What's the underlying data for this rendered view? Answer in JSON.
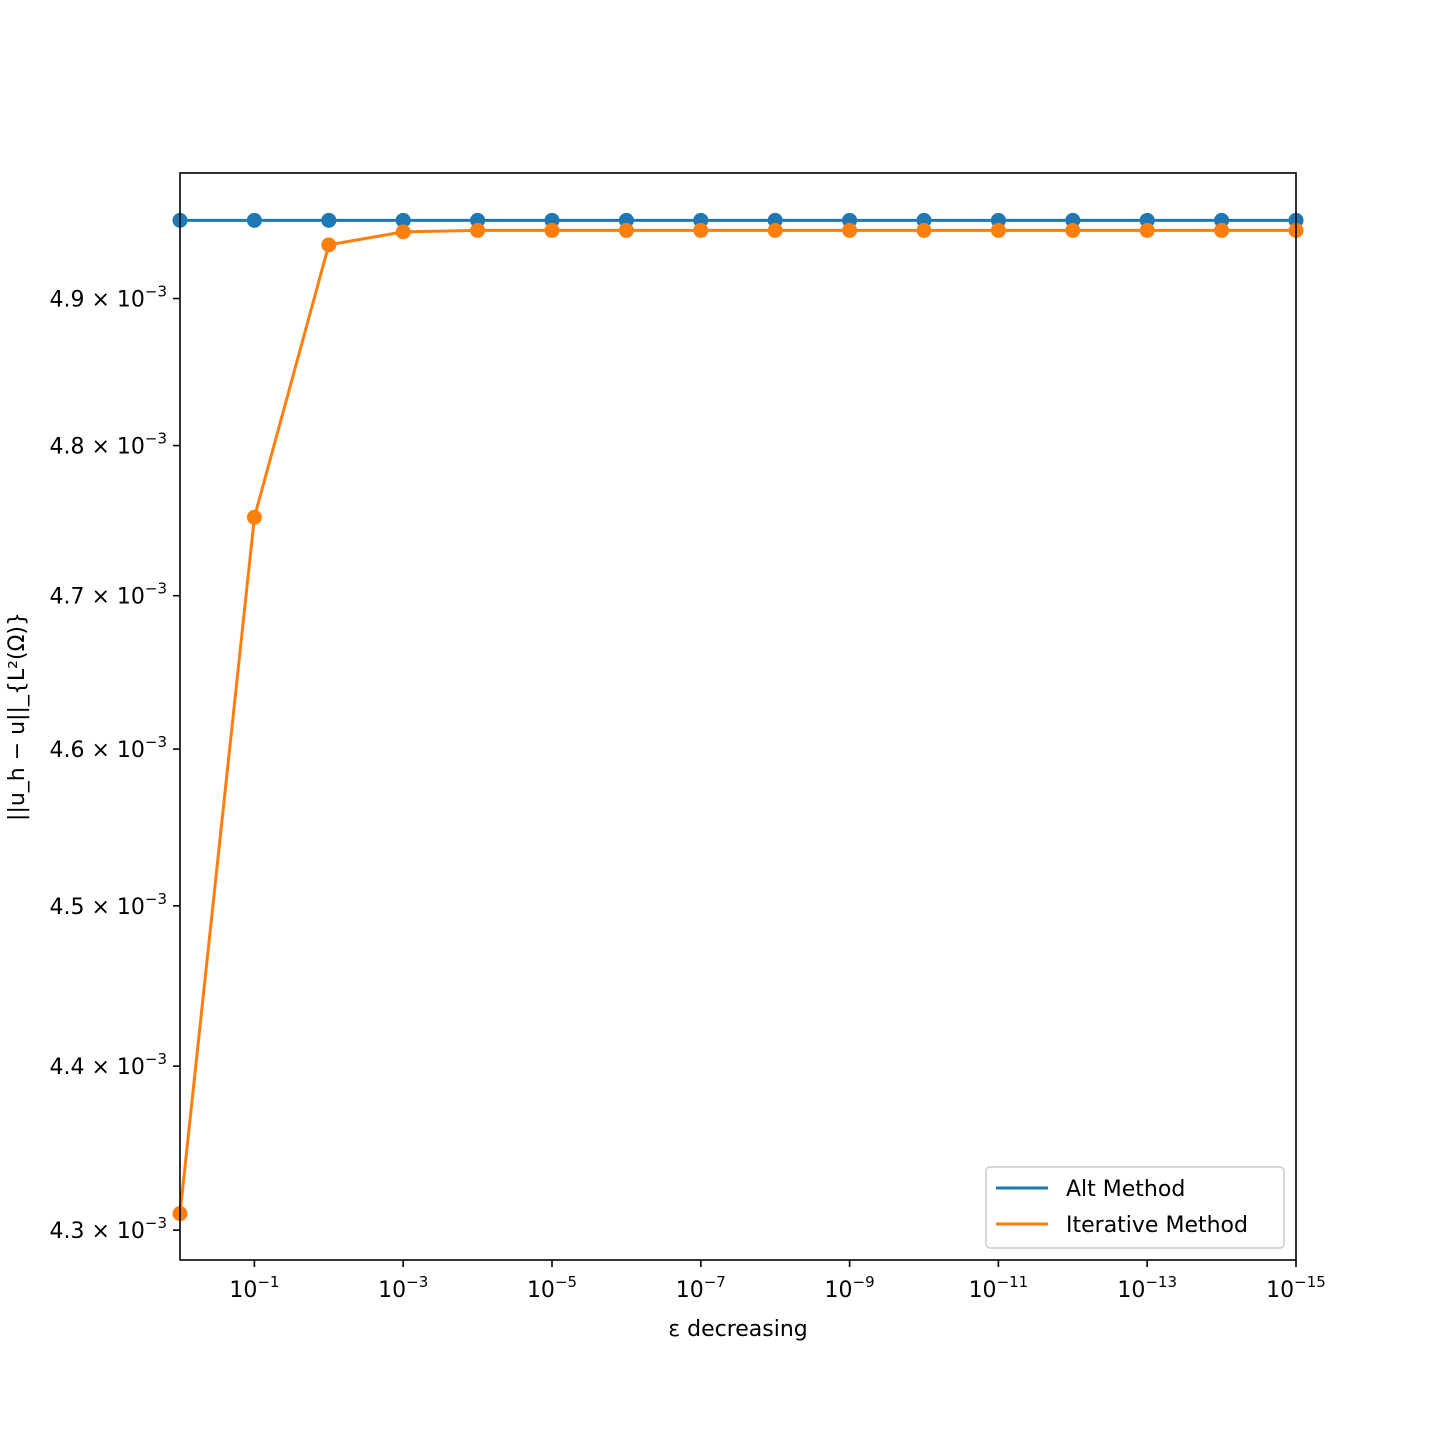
{
  "chart_data": {
    "type": "line",
    "xscale": "log",
    "x_direction": "decreasing",
    "yscale": "log",
    "xlabel": "ε decreasing",
    "ylabel": "||u_h − u||_{L²(Ω)}",
    "x": [
      1,
      0.1,
      0.01,
      0.001,
      0.0001,
      1e-05,
      1e-06,
      1e-07,
      1e-08,
      1e-09,
      1e-10,
      1e-11,
      1e-12,
      1e-13,
      1e-14,
      1e-15
    ],
    "xlim": [
      1,
      1e-15
    ],
    "ylim": [
      0.004282,
      0.004987
    ],
    "xticks": [
      {
        "value": 0.1,
        "base": "10",
        "exp": "−1"
      },
      {
        "value": 0.001,
        "base": "10",
        "exp": "−3"
      },
      {
        "value": 1e-05,
        "base": "10",
        "exp": "−5"
      },
      {
        "value": 1e-07,
        "base": "10",
        "exp": "−7"
      },
      {
        "value": 1e-09,
        "base": "10",
        "exp": "−9"
      },
      {
        "value": 1e-11,
        "base": "10",
        "exp": "−11"
      },
      {
        "value": 1e-13,
        "base": "10",
        "exp": "−13"
      },
      {
        "value": 1e-15,
        "base": "10",
        "exp": "−15"
      }
    ],
    "yticks": [
      {
        "value": 0.0049,
        "mantissa": "4.9 × 10",
        "exp": "−3"
      },
      {
        "value": 0.0048,
        "mantissa": "4.8 × 10",
        "exp": "−3"
      },
      {
        "value": 0.0047,
        "mantissa": "4.7 × 10",
        "exp": "−3"
      },
      {
        "value": 0.0046,
        "mantissa": "4.6 × 10",
        "exp": "−3"
      },
      {
        "value": 0.0045,
        "mantissa": "4.5 × 10",
        "exp": "−3"
      },
      {
        "value": 0.0044,
        "mantissa": "4.4 × 10",
        "exp": "−3"
      },
      {
        "value": 0.0043,
        "mantissa": "4.3 × 10",
        "exp": "−3"
      }
    ],
    "series": [
      {
        "name": "Alt Method",
        "color": "#1f77b4",
        "values": [
          0.004954,
          0.004954,
          0.004954,
          0.004954,
          0.004954,
          0.004954,
          0.004954,
          0.004954,
          0.004954,
          0.004954,
          0.004954,
          0.004954,
          0.004954,
          0.004954,
          0.004954,
          0.004954
        ]
      },
      {
        "name": "Iterative Method",
        "color": "#ff7f0e",
        "values": [
          0.00431,
          0.004752,
          0.004937,
          0.004946,
          0.004947,
          0.004947,
          0.004947,
          0.004947,
          0.004947,
          0.004947,
          0.004947,
          0.004947,
          0.004947,
          0.004947,
          0.004947,
          0.004947
        ]
      }
    ],
    "legend_position": "lower-right",
    "grid": false
  }
}
